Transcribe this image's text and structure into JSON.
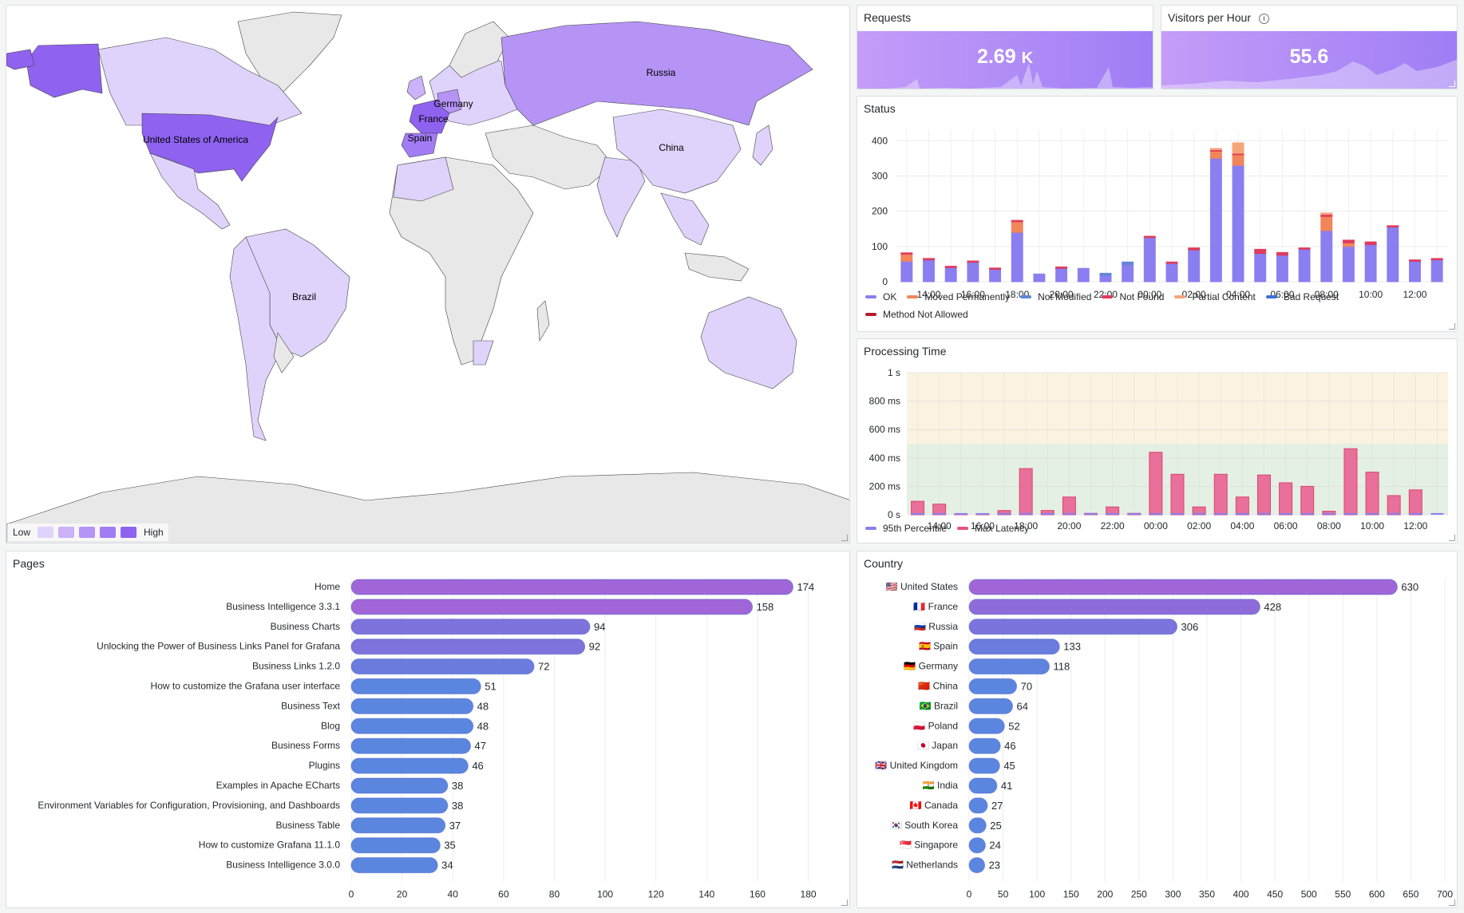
{
  "map": {
    "legend_low": "Low",
    "legend_high": "High",
    "legend_colors": [
      "#e0d3fb",
      "#cbb2f9",
      "#b594f5",
      "#a27cf4",
      "#8f62f0"
    ],
    "labels": [
      "Russia",
      "Germany",
      "France",
      "Spain",
      "United States of America",
      "China",
      "Brazil"
    ]
  },
  "requests": {
    "title": "Requests",
    "value": "2.69",
    "unit": "K"
  },
  "visitors": {
    "title": "Visitors per Hour",
    "value": "55.6",
    "info_icon": "info-icon"
  },
  "status": {
    "title": "Status",
    "chart_data": {
      "type": "bar",
      "stacked": true,
      "x": [
        "13:00",
        "14:00",
        "15:00",
        "16:00",
        "17:00",
        "18:00",
        "19:00",
        "20:00",
        "21:00",
        "22:00",
        "23:00",
        "00:00",
        "01:00",
        "02:00",
        "03:00",
        "04:00",
        "05:00",
        "06:00",
        "07:00",
        "08:00",
        "09:00",
        "10:00",
        "11:00",
        "12:00",
        "13:00"
      ],
      "x_tick_labels": [
        "14:00",
        "16:00",
        "18:00",
        "20:00",
        "22:00",
        "00:00",
        "02:00",
        "04:00",
        "06:00",
        "08:00",
        "10:00",
        "12:00"
      ],
      "y_ticks": [
        0,
        100,
        200,
        300,
        400
      ],
      "ylim": [
        0,
        430
      ],
      "series": [
        {
          "name": "OK",
          "color": "#8a7ef0",
          "values": [
            58,
            62,
            40,
            55,
            35,
            140,
            22,
            38,
            38,
            18,
            48,
            125,
            52,
            90,
            350,
            330,
            80,
            75,
            92,
            145,
            100,
            105,
            155,
            58,
            62
          ]
        },
        {
          "name": "Moved Permanently",
          "color": "#f2855a",
          "values": [
            20,
            0,
            0,
            0,
            0,
            30,
            0,
            0,
            0,
            0,
            0,
            0,
            0,
            0,
            20,
            30,
            0,
            0,
            0,
            40,
            10,
            0,
            0,
            0,
            0
          ]
        },
        {
          "name": "Not Modified",
          "color": "#5f86d8",
          "values": [
            0,
            0,
            0,
            0,
            0,
            0,
            0,
            0,
            0,
            6,
            8,
            0,
            0,
            0,
            0,
            0,
            0,
            0,
            0,
            0,
            0,
            0,
            0,
            0,
            0
          ]
        },
        {
          "name": "Not Found",
          "color": "#e03a5c",
          "values": [
            4,
            4,
            4,
            4,
            4,
            4,
            0,
            4,
            0,
            0,
            0,
            4,
            4,
            6,
            4,
            4,
            12,
            8,
            4,
            6,
            8,
            8,
            4,
            4,
            4
          ]
        },
        {
          "name": "Partial Content",
          "color": "#f5a57a",
          "values": [
            0,
            0,
            0,
            0,
            0,
            0,
            0,
            0,
            0,
            0,
            0,
            0,
            0,
            0,
            4,
            30,
            0,
            0,
            0,
            4,
            0,
            0,
            0,
            0,
            0
          ]
        },
        {
          "name": "Bad Request",
          "color": "#3d6fd6",
          "values": [
            0,
            0,
            0,
            0,
            0,
            0,
            0,
            0,
            0,
            0,
            0,
            0,
            0,
            0,
            0,
            0,
            0,
            0,
            0,
            0,
            0,
            0,
            0,
            0,
            0
          ]
        },
        {
          "name": "Method Not Allowed",
          "color": "#b01d30",
          "values": [
            0,
            0,
            0,
            0,
            0,
            0,
            0,
            0,
            0,
            0,
            0,
            0,
            0,
            0,
            0,
            0,
            0,
            0,
            0,
            0,
            0,
            0,
            0,
            0,
            0
          ]
        }
      ]
    }
  },
  "processing": {
    "title": "Processing Time",
    "chart_data": {
      "type": "bar",
      "x": [
        "13:00",
        "14:00",
        "15:00",
        "16:00",
        "17:00",
        "18:00",
        "19:00",
        "20:00",
        "21:00",
        "22:00",
        "23:00",
        "00:00",
        "01:00",
        "02:00",
        "03:00",
        "04:00",
        "05:00",
        "06:00",
        "07:00",
        "08:00",
        "09:00",
        "10:00",
        "11:00",
        "12:00",
        "13:00"
      ],
      "x_tick_labels": [
        "14:00",
        "16:00",
        "18:00",
        "20:00",
        "22:00",
        "00:00",
        "02:00",
        "04:00",
        "06:00",
        "08:00",
        "10:00",
        "12:00"
      ],
      "y_ticks": [
        "0 s",
        "200 ms",
        "400 ms",
        "600 ms",
        "800 ms",
        "1 s"
      ],
      "y_tick_values": [
        0,
        200,
        400,
        600,
        800,
        1000
      ],
      "ylim": [
        0,
        1000
      ],
      "thresholds": [
        {
          "from": 0,
          "to": 500,
          "color": "#e4f0e4"
        },
        {
          "from": 500,
          "to": 1000,
          "color": "#fbf3e1"
        }
      ],
      "series": [
        {
          "name": "95th Percentile",
          "color": "#8a7ef0",
          "values": [
            6,
            6,
            6,
            6,
            6,
            6,
            6,
            6,
            6,
            6,
            6,
            6,
            6,
            6,
            6,
            6,
            6,
            6,
            6,
            6,
            6,
            6,
            6,
            6,
            6
          ]
        },
        {
          "name": "Max Latency",
          "color": "#e8547c",
          "values": [
            95,
            75,
            5,
            8,
            30,
            325,
            30,
            125,
            10,
            55,
            10,
            440,
            285,
            55,
            285,
            125,
            280,
            225,
            200,
            25,
            465,
            300,
            135,
            175,
            0
          ]
        }
      ]
    }
  },
  "pages": {
    "title": "Pages",
    "chart_data": {
      "type": "bar",
      "orientation": "horizontal",
      "categories": [
        "Home",
        "Business Intelligence 3.3.1",
        "Business Charts",
        "Unlocking the Power of Business Links Panel for Grafana",
        "Business Links 1.2.0",
        "How to customize the Grafana user interface",
        "Business Text",
        "Blog",
        "Business Forms",
        "Plugins",
        "Examples in Apache ECharts",
        "Environment Variables for Configuration, Provisioning, and Dashboards",
        "Business Table",
        "How to customize Grafana 11.1.0",
        "Business Intelligence 3.0.0"
      ],
      "values": [
        174,
        158,
        94,
        92,
        72,
        51,
        48,
        48,
        47,
        46,
        38,
        38,
        37,
        35,
        34
      ],
      "x_ticks": [
        0,
        20,
        40,
        60,
        80,
        100,
        120,
        140,
        160,
        180
      ],
      "xlim": [
        0,
        188
      ]
    }
  },
  "country": {
    "title": "Country",
    "chart_data": {
      "type": "bar",
      "orientation": "horizontal",
      "categories": [
        "🇺🇸 United States",
        "🇫🇷 France",
        "🇷🇺 Russia",
        "🇪🇸 Spain",
        "🇩🇪 Germany",
        "🇨🇳 China",
        "🇧🇷 Brazil",
        "🇵🇱 Poland",
        "🇯🇵 Japan",
        "🇬🇧 United Kingdom",
        "🇮🇳 India",
        "🇨🇦 Canada",
        "🇰🇷 South Korea",
        "🇸🇬 Singapore",
        "🇳🇱 Netherlands"
      ],
      "values": [
        630,
        428,
        306,
        133,
        118,
        70,
        64,
        52,
        46,
        45,
        41,
        27,
        25,
        24,
        23
      ],
      "x_ticks": [
        0,
        50,
        100,
        150,
        200,
        250,
        300,
        350,
        400,
        450,
        500,
        550,
        600,
        650,
        700
      ],
      "x_tick_labels": [
        "0",
        "50",
        "100",
        "150",
        "200",
        "250",
        "300",
        "350",
        "400",
        "450",
        "500",
        "550",
        "600",
        "650",
        "700"
      ],
      "xlim": [
        0,
        700
      ]
    }
  }
}
